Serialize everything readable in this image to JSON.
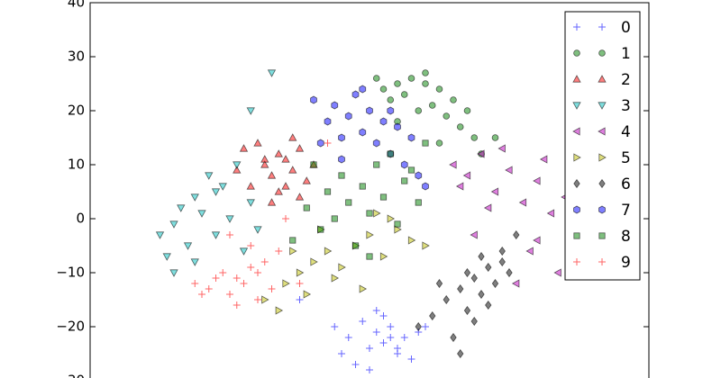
{
  "chart_data": {
    "type": "scatter",
    "xlim": [
      -40,
      40
    ],
    "ylim": [
      -30,
      40
    ],
    "yticks": [
      {
        "value": -30,
        "label": "−30"
      },
      {
        "value": -20,
        "label": "−20"
      },
      {
        "value": -10,
        "label": "−10"
      },
      0,
      10,
      20,
      30,
      40
    ],
    "legend": "upper right",
    "series": [
      {
        "name": "0",
        "color": "#0000ff",
        "marker": "plus",
        "x": [
          -5,
          -3,
          -1,
          0,
          1,
          2,
          3,
          4,
          5,
          6,
          7,
          -2,
          0,
          2,
          4,
          -4,
          1,
          3,
          8,
          -10
        ],
        "values": [
          -20,
          -22,
          -19,
          -24,
          -21,
          -23,
          -20,
          -25,
          -22,
          -26,
          -21,
          -27,
          -28,
          -18,
          -24,
          -25,
          -17,
          -22,
          -20,
          -15
        ]
      },
      {
        "name": "1",
        "color": "#008000",
        "marker": "circle",
        "x": [
          1,
          2,
          3,
          4,
          5,
          6,
          7,
          8,
          9,
          10,
          11,
          12,
          13,
          14,
          15,
          4,
          8,
          10,
          16,
          18
        ],
        "values": [
          26,
          24,
          22,
          25,
          23,
          26,
          20,
          27,
          21,
          24,
          19,
          22,
          17,
          20,
          15,
          18,
          25,
          14,
          12,
          15
        ]
      },
      {
        "name": "2",
        "color": "#ff0000",
        "marker": "triangle-up",
        "x": [
          -18,
          -16,
          -15,
          -14,
          -13,
          -12,
          -11,
          -10,
          -9,
          -17,
          -13,
          -11,
          -8,
          -15,
          -12,
          -14,
          -10,
          -19
        ],
        "values": [
          13,
          14,
          10,
          8,
          12,
          11,
          9,
          13,
          7,
          6,
          5,
          15,
          10,
          11,
          6,
          3,
          4,
          9
        ]
      },
      {
        "name": "3",
        "color": "#00bfbf",
        "marker": "triangle-down",
        "x": [
          -30,
          -28,
          -27,
          -26,
          -25,
          -24,
          -23,
          -22,
          -21,
          -20,
          -19,
          -18,
          -17,
          -16,
          -28,
          -25,
          -22,
          -14,
          -17,
          -29
        ],
        "values": [
          -3,
          -1,
          2,
          -5,
          4,
          1,
          8,
          -3,
          6,
          0,
          10,
          -6,
          3,
          -2,
          -10,
          -8,
          5,
          27,
          20,
          -7
        ]
      },
      {
        "name": "4",
        "color": "#bf00bf",
        "marker": "triangle-left",
        "x": [
          12,
          14,
          16,
          18,
          20,
          22,
          24,
          26,
          28,
          30,
          15,
          19,
          23,
          27,
          21,
          25,
          17,
          29,
          13,
          24
        ],
        "values": [
          10,
          8,
          12,
          5,
          9,
          3,
          7,
          1,
          4,
          -2,
          -3,
          13,
          -6,
          -10,
          -12,
          11,
          2,
          -8,
          6,
          -4
        ]
      },
      {
        "name": "5",
        "color": "#bfbf00",
        "marker": "triangle-right",
        "x": [
          -15,
          -12,
          -10,
          -8,
          -6,
          -4,
          -2,
          0,
          2,
          4,
          6,
          -13,
          -9,
          -5,
          -1,
          3,
          -7,
          8,
          -11,
          1
        ],
        "values": [
          -15,
          -12,
          -10,
          -8,
          -6,
          -9,
          -5,
          -3,
          -7,
          -2,
          -4,
          -17,
          -14,
          -11,
          -13,
          0,
          -2,
          -5,
          -6,
          1
        ]
      },
      {
        "name": "6",
        "color": "#000000",
        "marker": "diamond",
        "x": [
          7,
          9,
          11,
          13,
          14,
          15,
          16,
          17,
          18,
          19,
          20,
          12,
          15,
          17,
          19,
          10,
          14,
          21,
          13,
          16
        ],
        "values": [
          -20,
          -18,
          -15,
          -13,
          -17,
          -11,
          -14,
          -9,
          -12,
          -6,
          -10,
          -22,
          -19,
          -16,
          -8,
          -12,
          -10,
          -3,
          -25,
          -7
        ]
      },
      {
        "name": "7",
        "color": "#0000ff",
        "marker": "hexagon",
        "x": [
          -8,
          -6,
          -5,
          -4,
          -3,
          -2,
          -1,
          0,
          1,
          2,
          3,
          4,
          5,
          6,
          7,
          -7,
          -1,
          3,
          -4,
          8
        ],
        "values": [
          22,
          18,
          21,
          15,
          19,
          23,
          16,
          20,
          14,
          18,
          12,
          17,
          10,
          15,
          8,
          14,
          24,
          20,
          11,
          6
        ]
      },
      {
        "name": "8",
        "color": "#008000",
        "marker": "square",
        "x": [
          -11,
          -9,
          -7,
          -6,
          -5,
          -4,
          -3,
          -2,
          -1,
          0,
          1,
          2,
          3,
          4,
          5,
          6,
          7,
          -8,
          0,
          8
        ],
        "values": [
          -4,
          2,
          -2,
          5,
          0,
          8,
          3,
          -5,
          6,
          1,
          10,
          4,
          12,
          -1,
          7,
          9,
          3,
          10,
          -7,
          14
        ]
      },
      {
        "name": "9",
        "color": "#ff0000",
        "marker": "plus",
        "x": [
          -25,
          -23,
          -21,
          -20,
          -19,
          -18,
          -17,
          -16,
          -15,
          -14,
          -22,
          -19,
          -13,
          -17,
          -10,
          -6,
          -12,
          -20,
          -24,
          -16
        ],
        "values": [
          -12,
          -13,
          -10,
          -14,
          -11,
          -12,
          -9,
          -15,
          -8,
          -13,
          -11,
          -16,
          -6,
          -5,
          -12,
          14,
          0,
          -3,
          -14,
          -10
        ]
      }
    ]
  }
}
